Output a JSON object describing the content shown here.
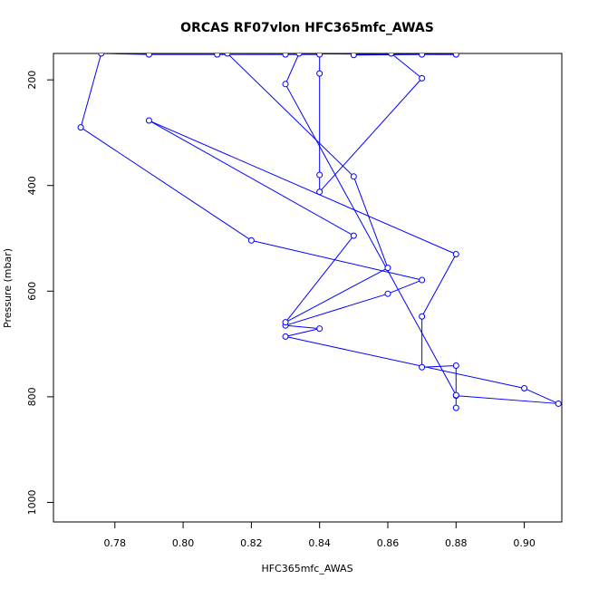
{
  "chart_data": {
    "type": "line",
    "title": "ORCAS RF07vlon HFC365mfc_AWAS",
    "xlabel": "HFC365mfc_AWAS",
    "ylabel": "Pressure (mbar)",
    "xlim": [
      0.762,
      0.911
    ],
    "ylim": [
      1037,
      150
    ],
    "y_reversed": true,
    "x_ticks": [
      0.78,
      0.8,
      0.82,
      0.84,
      0.86,
      0.88,
      0.9
    ],
    "x_tick_labels": [
      "0.78",
      "0.80",
      "0.82",
      "0.84",
      "0.86",
      "0.88",
      "0.90"
    ],
    "y_ticks": [
      200,
      400,
      600,
      800,
      1000
    ],
    "y_tick_labels": [
      "200",
      "400",
      "600",
      "800",
      "1000"
    ],
    "grid": false,
    "legend": "none",
    "series_color": "#0000ff",
    "series": [
      {
        "points": [
          {
            "x": 0.88,
            "y": 821
          },
          {
            "x": 0.88,
            "y": 798
          },
          {
            "x": 0.91,
            "y": 813
          },
          {
            "x": 0.9,
            "y": 784
          },
          {
            "x": 0.83,
            "y": 686
          },
          {
            "x": 0.84,
            "y": 671
          },
          {
            "x": 0.83,
            "y": 665
          },
          {
            "x": 0.86,
            "y": 605
          },
          {
            "x": 0.87,
            "y": 579
          },
          {
            "x": 0.82,
            "y": 504
          },
          {
            "x": 0.77,
            "y": 290
          },
          {
            "x": 0.776,
            "y": 150
          },
          {
            "x": 0.79,
            "y": 152
          },
          {
            "x": 0.81,
            "y": 152
          },
          {
            "x": 0.83,
            "y": 152
          },
          {
            "x": 0.84,
            "y": 152
          },
          {
            "x": 0.84,
            "y": 188
          },
          {
            "x": 0.84,
            "y": 380
          },
          {
            "x": 0.84,
            "y": 412
          },
          {
            "x": 0.87,
            "y": 197
          },
          {
            "x": 0.861,
            "y": 150
          },
          {
            "x": 0.85,
            "y": 153
          },
          {
            "x": 0.87,
            "y": 152
          },
          {
            "x": 0.88,
            "y": 152
          },
          {
            "x": 0.813,
            "y": 150
          },
          {
            "x": 0.85,
            "y": 383
          },
          {
            "x": 0.86,
            "y": 556
          },
          {
            "x": 0.83,
            "y": 659
          },
          {
            "x": 0.85,
            "y": 495
          },
          {
            "x": 0.79,
            "y": 277
          },
          {
            "x": 0.88,
            "y": 530
          },
          {
            "x": 0.87,
            "y": 648
          },
          {
            "x": 0.87,
            "y": 744
          },
          {
            "x": 0.88,
            "y": 741
          },
          {
            "x": 0.88,
            "y": 797
          },
          {
            "x": 0.83,
            "y": 208
          },
          {
            "x": 0.834,
            "y": 150
          }
        ]
      }
    ]
  }
}
